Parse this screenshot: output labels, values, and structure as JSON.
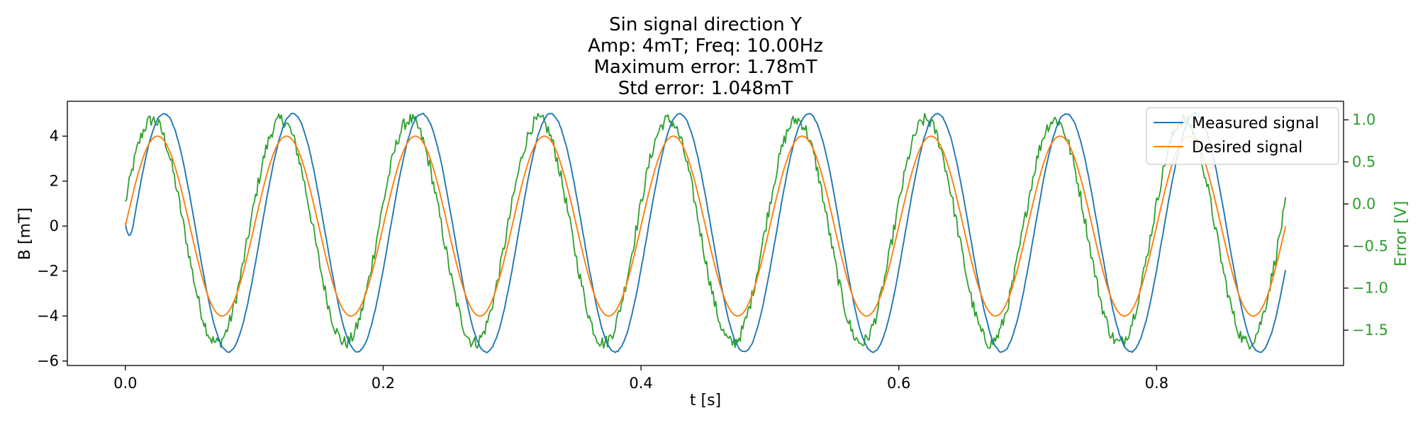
{
  "chart_data": {
    "type": "line",
    "title_lines": [
      "Sin signal direction Y",
      "Amp: 4mT; Freq: 10.00Hz",
      "Maximum error: 1.78mT",
      "Std error: 1.048mT"
    ],
    "xlabel": "t [s]",
    "ylabel": "B [mT]",
    "y2label": "Error [V]",
    "xlim": [
      -0.045,
      0.945
    ],
    "ylim": [
      -6.2,
      5.55
    ],
    "y2lim": [
      -1.92,
      1.22
    ],
    "x_ticks": [
      0.0,
      0.2,
      0.4,
      0.6,
      0.8
    ],
    "x_tick_labels": [
      "0.0",
      "0.2",
      "0.4",
      "0.6",
      "0.8"
    ],
    "y_ticks": [
      -6,
      -4,
      -2,
      0,
      2,
      4
    ],
    "y_tick_labels": [
      "−6",
      "−4",
      "−2",
      "0",
      "2",
      "4"
    ],
    "y2_ticks": [
      -1.5,
      -1.0,
      -0.5,
      0.0,
      0.5,
      1.0
    ],
    "y2_tick_labels": [
      "−1.5",
      "−1.0",
      "−0.5",
      "0.0",
      "0.5",
      "1.0"
    ],
    "grid": false,
    "legend_position": "top-right",
    "legend": [
      {
        "name": "Measured signal",
        "color": "#1f77b4"
      },
      {
        "name": "Desired signal",
        "color": "#ff7f0e"
      }
    ],
    "series": [
      {
        "name": "Measured signal",
        "axis": "left",
        "color": "#1f77b4",
        "amplitude_peak": 5.0,
        "amplitude_trough": -5.6,
        "frequency": 10.0,
        "phase_lag": 0.005,
        "t_start": 0.0,
        "t_end": 0.9,
        "y_start": 0.1,
        "y_end": -0.6
      },
      {
        "name": "Desired signal",
        "axis": "left",
        "color": "#ff7f0e",
        "amplitude": 4.0,
        "frequency": 10.0,
        "t_start": 0.0,
        "t_end": 0.9,
        "y_start": 0.0,
        "y_end": -0.1
      },
      {
        "name": "Error",
        "axis": "right",
        "color": "#2ca02c",
        "peak": 1.0,
        "trough": -1.65,
        "frequency": 10.0,
        "lead": -0.004,
        "t_start": 0.0,
        "t_end": 0.9,
        "y_start": 0.15,
        "y_end": 0.05
      }
    ],
    "colors": {
      "measured": "#1f77b4",
      "desired": "#ff7f0e",
      "error": "#2ca02c"
    }
  }
}
